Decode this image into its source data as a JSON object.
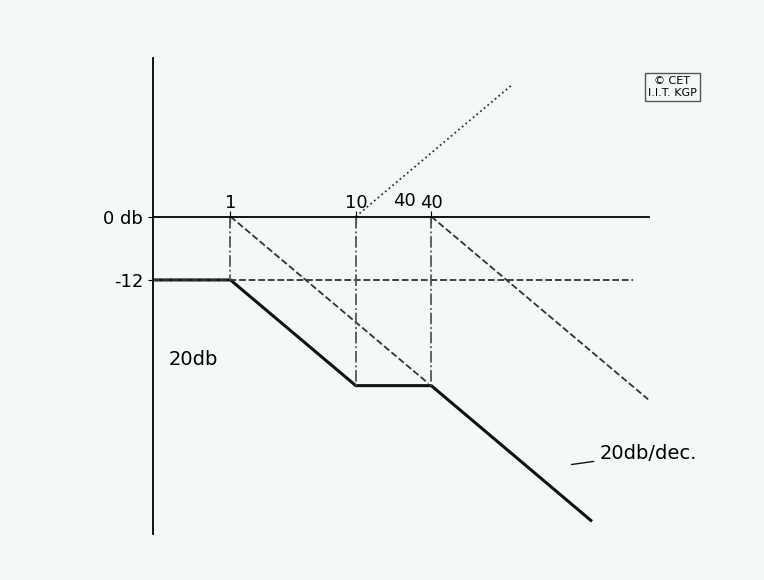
{
  "chart_data": {
    "type": "line",
    "log": "x",
    "xlim": [
      0.24,
      2200
    ],
    "xticks": [
      1,
      10,
      40
    ],
    "ylim": [
      -60,
      30
    ],
    "yticks": [
      {
        "value": 0,
        "label": "0 db"
      },
      -12
    ],
    "annotations": [
      "40",
      "20db",
      "20db/dec.",
      "© CET\nI.I.T. KGP"
    ],
    "series": [
      {
        "x": [
          0.24,
          1,
          10,
          40,
          750
        ],
        "values": [
          -12,
          -12,
          -32,
          -32,
          -57.5
        ],
        "color": "#111111",
        "line_style": "solid"
      },
      {
        "x": [
          10,
          178
        ],
        "values": [
          0,
          25
        ],
        "color": "#333333",
        "line_style": "dotted"
      },
      {
        "x": [
          1,
          38
        ],
        "values": [
          0,
          -31.6
        ],
        "color": "#333333",
        "line_style": "dashed"
      },
      {
        "x": [
          40,
          2150
        ],
        "values": [
          0,
          -34.6
        ],
        "color": "#333333",
        "line_style": "dashed"
      },
      {
        "x": [
          0.24,
          1620
        ],
        "values": [
          -12,
          -12
        ],
        "color": "#333333",
        "line_style": "dashed"
      },
      {
        "x": [
          1,
          1
        ],
        "values": [
          0,
          -12
        ],
        "color": "#555555",
        "line_style": "dashdot"
      },
      {
        "x": [
          10,
          10
        ],
        "values": [
          0,
          -32
        ],
        "color": "#555555",
        "line_style": "dashdot"
      },
      {
        "x": [
          40,
          40
        ],
        "values": [
          0,
          -32
        ],
        "color": "#555555",
        "line_style": "dashdot"
      }
    ]
  }
}
